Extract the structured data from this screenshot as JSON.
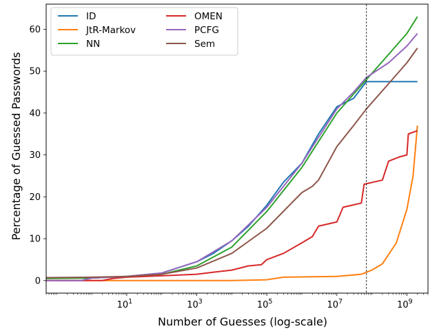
{
  "chart_data": {
    "type": "line",
    "xlabel": "Number of Guesses (log-scale)",
    "ylabel": "Percentage of Guessed Passwords",
    "xscale": "log",
    "xlim": [
      0.05,
      4000000000
    ],
    "ylim": [
      -3,
      66
    ],
    "xticks": [
      {
        "value": 10,
        "base": "10",
        "exp": "1"
      },
      {
        "value": 1000,
        "base": "10",
        "exp": "3"
      },
      {
        "value": 100000,
        "base": "10",
        "exp": "5"
      },
      {
        "value": 10000000,
        "base": "10",
        "exp": "7"
      },
      {
        "value": 1000000000,
        "base": "10",
        "exp": "9"
      }
    ],
    "yticks": [
      0,
      10,
      20,
      30,
      40,
      50,
      60
    ],
    "vline": {
      "x": 70000000,
      "style": "dashed"
    },
    "legend": {
      "position": "top-left",
      "columns": 2
    },
    "series": [
      {
        "name": "ID",
        "color": "#1f77b4",
        "points": [
          [
            0.05,
            0
          ],
          [
            0.5,
            0
          ],
          [
            1,
            0.6
          ],
          [
            10,
            1
          ],
          [
            100,
            1.8
          ],
          [
            1000,
            4.5
          ],
          [
            3000,
            6.5
          ],
          [
            10000,
            9.5
          ],
          [
            30000,
            13
          ],
          [
            100000,
            18
          ],
          [
            300000,
            23.5
          ],
          [
            1000000,
            28
          ],
          [
            3000000,
            35
          ],
          [
            10000000,
            41.5
          ],
          [
            30000000,
            43.5
          ],
          [
            70000000,
            47.5
          ],
          [
            2000000000,
            47.5
          ]
        ]
      },
      {
        "name": "JtR-Markov",
        "color": "#ff7f0e",
        "points": [
          [
            0.05,
            0
          ],
          [
            10000,
            0
          ],
          [
            100000,
            0.2
          ],
          [
            300000,
            0.8
          ],
          [
            10000000,
            1
          ],
          [
            50000000,
            1.5
          ],
          [
            100000000,
            2.5
          ],
          [
            200000000,
            4
          ],
          [
            500000000,
            9
          ],
          [
            1000000000,
            17
          ],
          [
            1500000000,
            25
          ],
          [
            2000000000,
            37
          ]
        ]
      },
      {
        "name": "NN",
        "color": "#2ca02c",
        "points": [
          [
            0.05,
            0.5
          ],
          [
            1,
            0.6
          ],
          [
            10,
            1
          ],
          [
            100,
            1.5
          ],
          [
            1000,
            3.5
          ],
          [
            10000,
            8
          ],
          [
            100000,
            16.5
          ],
          [
            1000000,
            27
          ],
          [
            10000000,
            40
          ],
          [
            70000000,
            48
          ],
          [
            300000000,
            54
          ],
          [
            1000000000,
            59
          ],
          [
            2000000000,
            63
          ]
        ]
      },
      {
        "name": "OMEN",
        "color": "#d62728",
        "points": [
          [
            0.05,
            0
          ],
          [
            2,
            0
          ],
          [
            4,
            0.5
          ],
          [
            10,
            0.8
          ],
          [
            1000,
            1.5
          ],
          [
            3000,
            2
          ],
          [
            10000,
            2.5
          ],
          [
            30000,
            3.5
          ],
          [
            70000,
            3.8
          ],
          [
            100000,
            5
          ],
          [
            300000,
            6.5
          ],
          [
            1000000,
            9
          ],
          [
            2000000,
            10.5
          ],
          [
            3000000,
            13
          ],
          [
            10000000,
            14
          ],
          [
            15000000,
            17.5
          ],
          [
            50000000,
            18.5
          ],
          [
            60000000,
            23
          ],
          [
            200000000,
            24
          ],
          [
            300000000,
            28.5
          ],
          [
            600000000,
            29.5
          ],
          [
            1000000000,
            30
          ],
          [
            1100000000,
            35
          ],
          [
            2000000000,
            35.8
          ]
        ]
      },
      {
        "name": "PCFG",
        "color": "#9467bd",
        "points": [
          [
            0.05,
            0
          ],
          [
            0.5,
            0
          ],
          [
            1,
            0.6
          ],
          [
            10,
            1
          ],
          [
            100,
            1.8
          ],
          [
            1000,
            4.5
          ],
          [
            10000,
            9.5
          ],
          [
            100000,
            17.5
          ],
          [
            1000000,
            28
          ],
          [
            10000000,
            41
          ],
          [
            30000000,
            45
          ],
          [
            70000000,
            48.5
          ],
          [
            300000000,
            52
          ],
          [
            1000000000,
            56
          ],
          [
            2000000000,
            59
          ]
        ]
      },
      {
        "name": "Sem",
        "color": "#8c564b",
        "points": [
          [
            0.05,
            0.7
          ],
          [
            1,
            0.8
          ],
          [
            10,
            1
          ],
          [
            100,
            1.5
          ],
          [
            1000,
            3
          ],
          [
            10000,
            6.5
          ],
          [
            100000,
            12.5
          ],
          [
            1000000,
            21
          ],
          [
            2000000,
            22.5
          ],
          [
            3000000,
            24
          ],
          [
            10000000,
            32
          ],
          [
            30000000,
            37
          ],
          [
            70000000,
            41
          ],
          [
            300000000,
            47
          ],
          [
            1000000000,
            52
          ],
          [
            2000000000,
            55.5
          ]
        ]
      }
    ]
  }
}
